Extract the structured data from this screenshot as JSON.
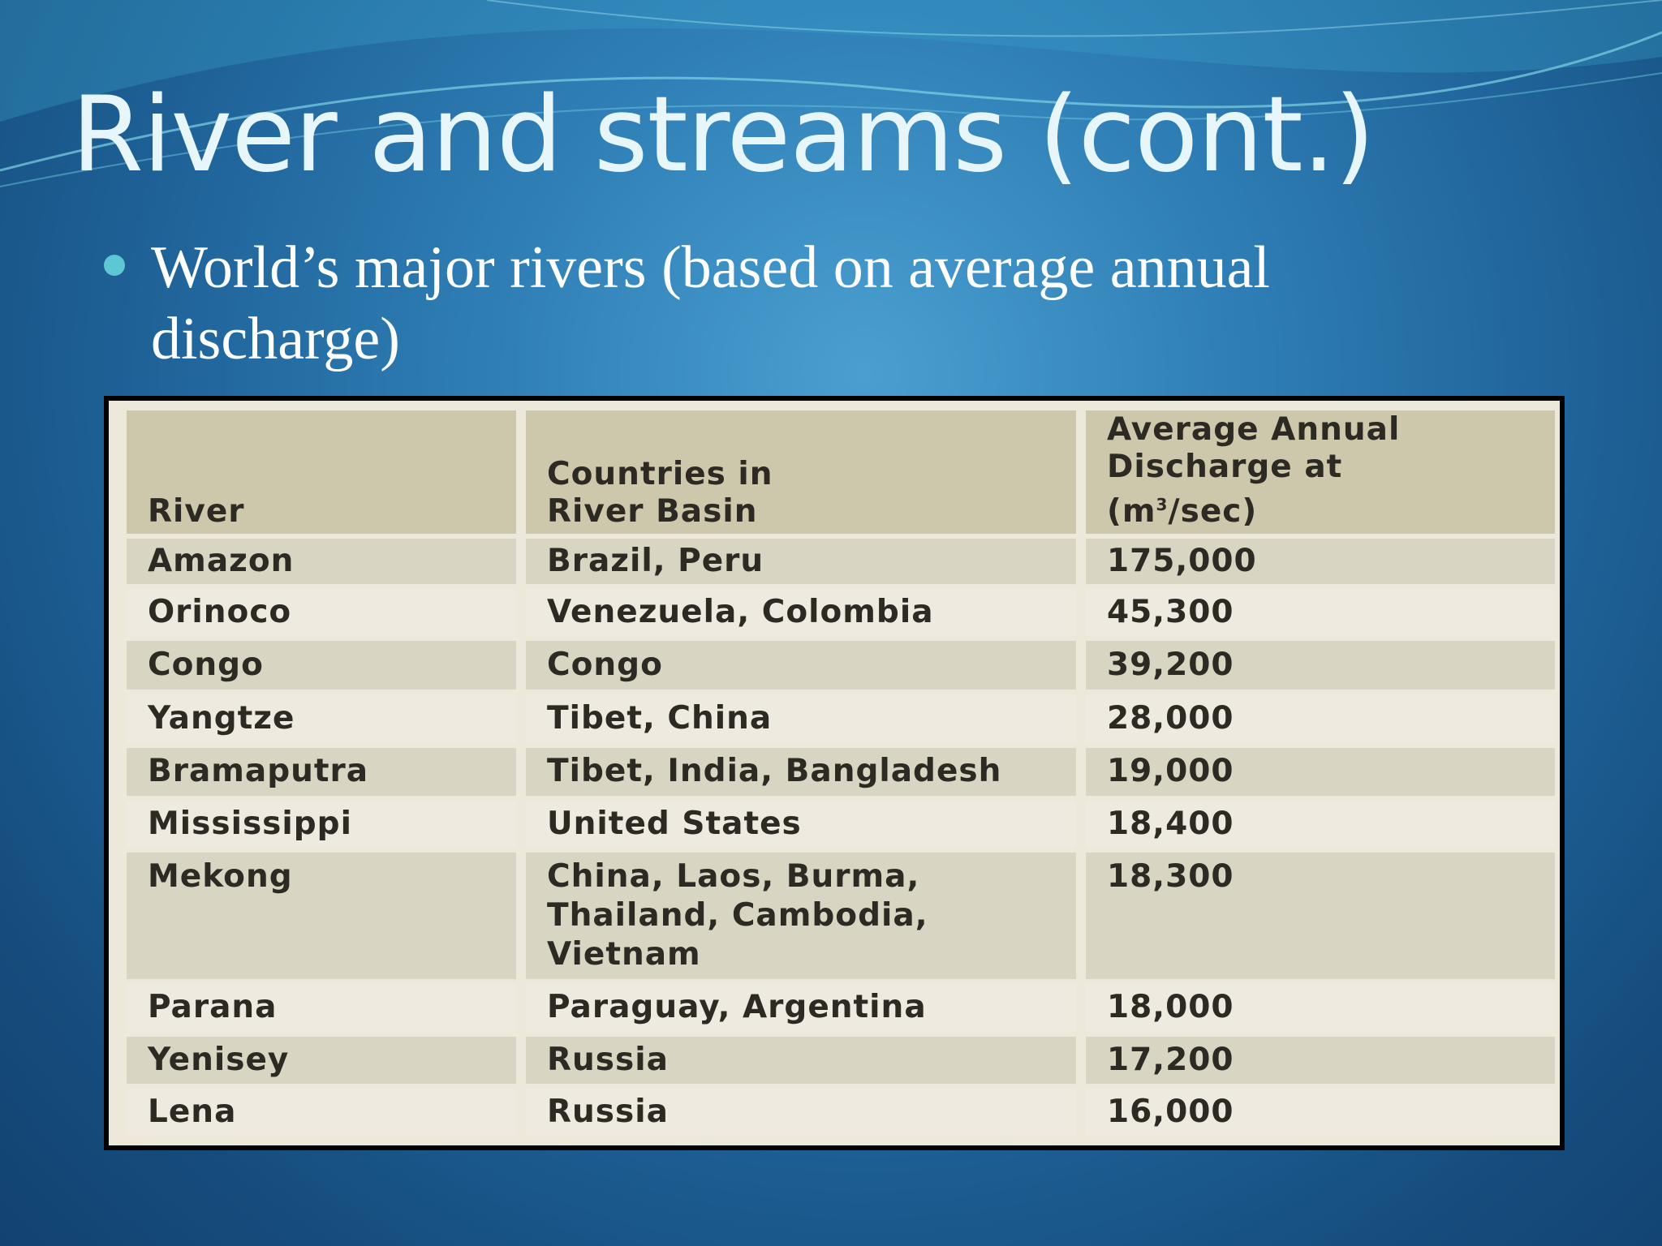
{
  "slide": {
    "title": "River and streams (cont.)",
    "bullet": "World’s major rivers (based on average annual discharge)"
  },
  "table": {
    "headers": {
      "river": "River",
      "countries_line1": "Countries in",
      "countries_line2": "River Basin",
      "discharge_line1": "Average Annual",
      "discharge_line2": "Discharge at",
      "discharge_line3_pre": "(m",
      "discharge_line3_sup": "3",
      "discharge_line3_post": "/sec)"
    },
    "rows": [
      {
        "river": "Amazon",
        "countries": "Brazil, Peru",
        "discharge": "175,000"
      },
      {
        "river": "Orinoco",
        "countries": "Venezuela, Colombia",
        "discharge": "45,300"
      },
      {
        "river": "Congo",
        "countries": "Congo",
        "discharge": "39,200"
      },
      {
        "river": "Yangtze",
        "countries": "Tibet, China",
        "discharge": "28,000"
      },
      {
        "river": "Bramaputra",
        "countries": "Tibet, India, Bangladesh",
        "discharge": "19,000"
      },
      {
        "river": "Mississippi",
        "countries": "United States",
        "discharge": "18,400"
      },
      {
        "river": "Mekong",
        "countries_line1": "China, Laos, Burma,",
        "countries_line2": "Thailand, Cambodia,",
        "countries_line3": "Vietnam",
        "discharge": "18,300"
      },
      {
        "river": "Parana",
        "countries": "Paraguay, Argentina",
        "discharge": "18,000"
      },
      {
        "river": "Yenisey",
        "countries": "Russia",
        "discharge": "17,200"
      },
      {
        "river": "Lena",
        "countries": "Russia",
        "discharge": "16,000"
      }
    ]
  },
  "colors": {
    "background": "#2f7fb6",
    "title_text": "#e7f6fb",
    "bullet_dot": "#5ec7d4",
    "table_header": "#cdc8ab",
    "table_row_shade": "#d9d5c3",
    "table_row_light": "#eeeadf"
  }
}
